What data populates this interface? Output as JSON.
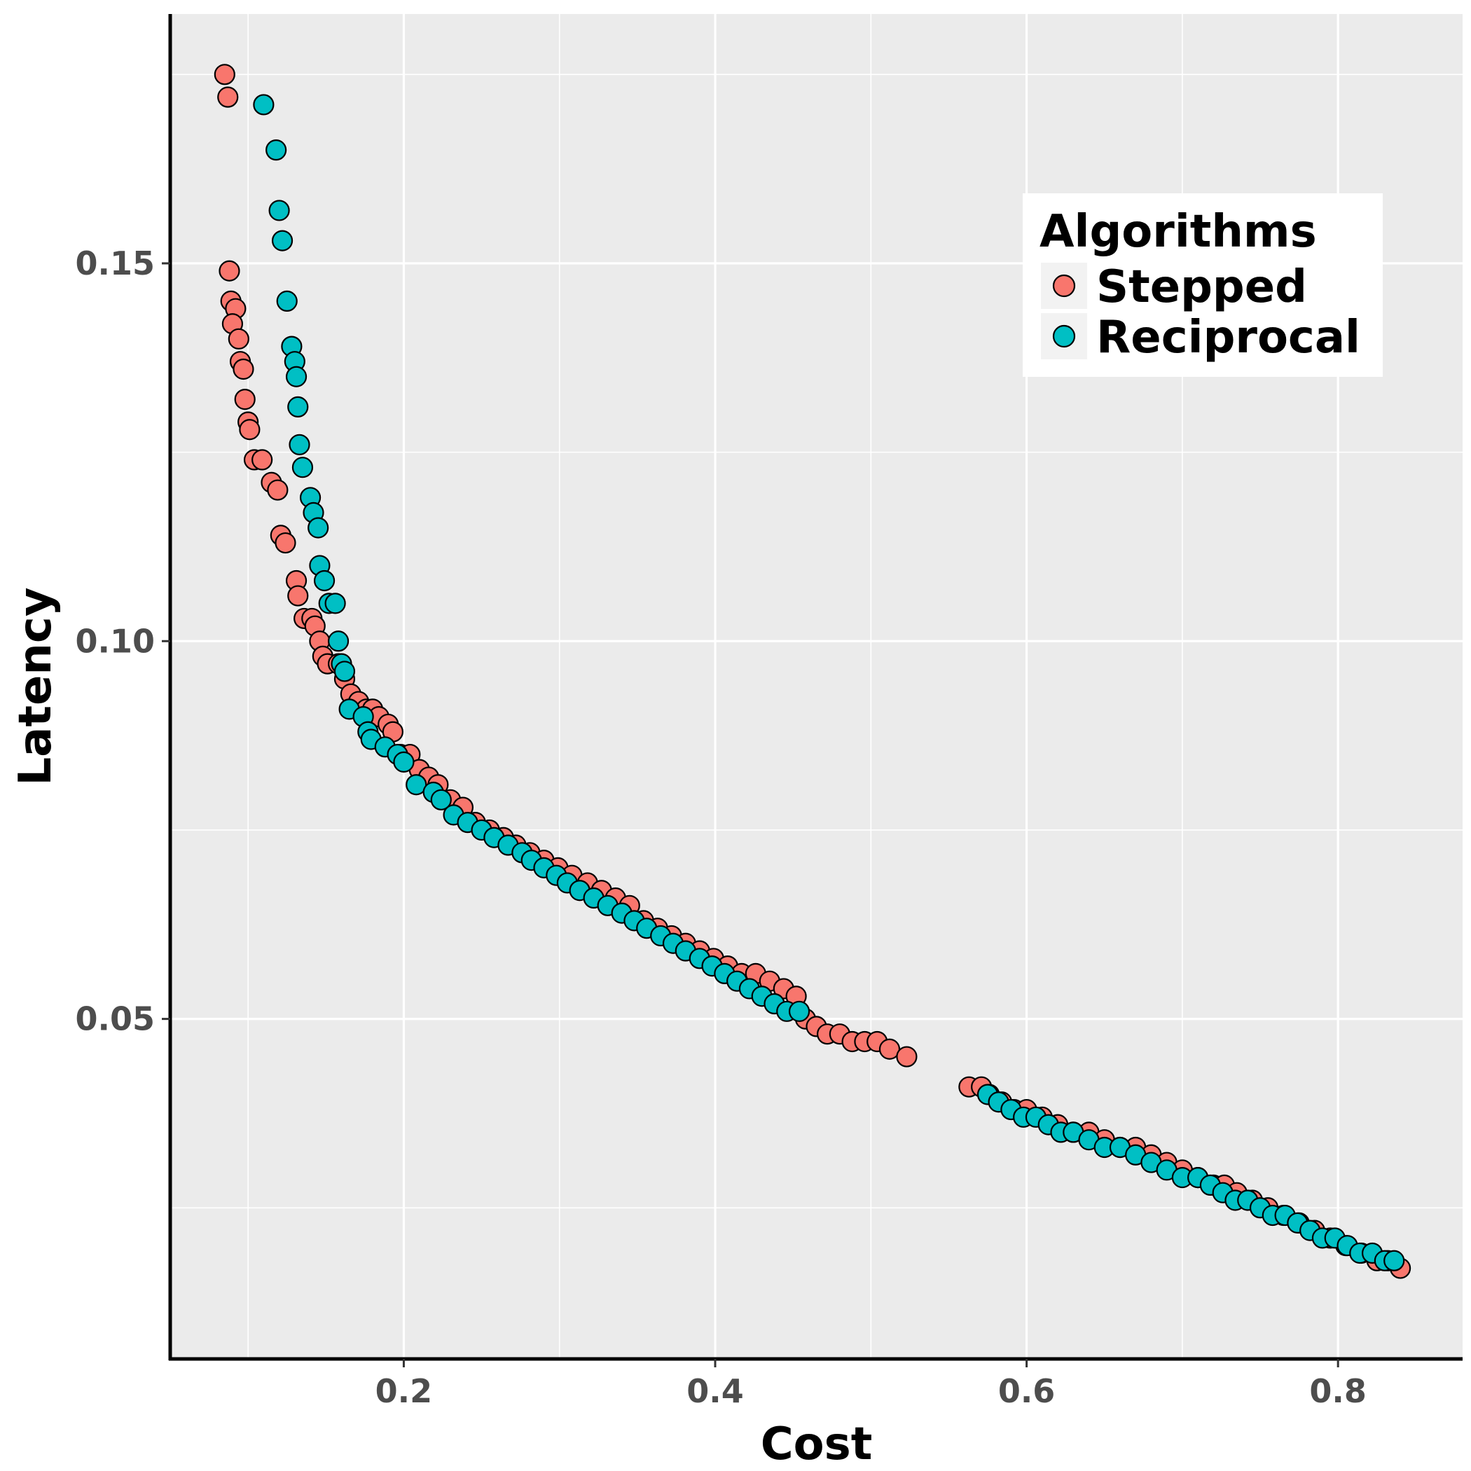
{
  "chart_data": {
    "type": "scatter",
    "title": "",
    "xlabel": "Cost",
    "ylabel": "Latency",
    "xlim": [
      0.05,
      0.88
    ],
    "ylim": [
      0.005,
      0.183
    ],
    "xticks": [
      0.2,
      0.4,
      0.6,
      0.8
    ],
    "xtick_labels": [
      "0.2",
      "0.4",
      "0.6",
      "0.8"
    ],
    "yticks": [
      0.05,
      0.1,
      0.15
    ],
    "ytick_labels": [
      "0.05",
      "0.10",
      "0.15"
    ],
    "grid": true,
    "panel_background": "#ebebeb",
    "legend": {
      "title": "Algorithms",
      "position": "top-right",
      "entries": [
        "Stepped",
        "Reciprocal"
      ]
    },
    "series": [
      {
        "name": "Stepped",
        "color": "#f8766d",
        "points": [
          [
            0.085,
            0.175
          ],
          [
            0.087,
            0.172
          ],
          [
            0.088,
            0.149
          ],
          [
            0.089,
            0.145
          ],
          [
            0.092,
            0.144
          ],
          [
            0.09,
            0.142
          ],
          [
            0.094,
            0.14
          ],
          [
            0.095,
            0.137
          ],
          [
            0.097,
            0.136
          ],
          [
            0.098,
            0.132
          ],
          [
            0.1,
            0.129
          ],
          [
            0.101,
            0.128
          ],
          [
            0.104,
            0.124
          ],
          [
            0.109,
            0.124
          ],
          [
            0.115,
            0.121
          ],
          [
            0.119,
            0.12
          ],
          [
            0.121,
            0.114
          ],
          [
            0.124,
            0.113
          ],
          [
            0.131,
            0.108
          ],
          [
            0.132,
            0.106
          ],
          [
            0.136,
            0.103
          ],
          [
            0.141,
            0.103
          ],
          [
            0.143,
            0.102
          ],
          [
            0.146,
            0.1
          ],
          [
            0.148,
            0.098
          ],
          [
            0.151,
            0.097
          ],
          [
            0.158,
            0.097
          ],
          [
            0.162,
            0.095
          ],
          [
            0.166,
            0.093
          ],
          [
            0.171,
            0.092
          ],
          [
            0.176,
            0.091
          ],
          [
            0.18,
            0.091
          ],
          [
            0.184,
            0.09
          ],
          [
            0.19,
            0.089
          ],
          [
            0.193,
            0.088
          ],
          [
            0.198,
            0.085
          ],
          [
            0.204,
            0.085
          ],
          [
            0.21,
            0.083
          ],
          [
            0.216,
            0.082
          ],
          [
            0.222,
            0.081
          ],
          [
            0.23,
            0.079
          ],
          [
            0.238,
            0.078
          ],
          [
            0.246,
            0.076
          ],
          [
            0.255,
            0.075
          ],
          [
            0.264,
            0.074
          ],
          [
            0.272,
            0.073
          ],
          [
            0.281,
            0.072
          ],
          [
            0.29,
            0.071
          ],
          [
            0.299,
            0.07
          ],
          [
            0.308,
            0.069
          ],
          [
            0.318,
            0.068
          ],
          [
            0.327,
            0.067
          ],
          [
            0.336,
            0.066
          ],
          [
            0.345,
            0.065
          ],
          [
            0.354,
            0.063
          ],
          [
            0.363,
            0.062
          ],
          [
            0.372,
            0.061
          ],
          [
            0.381,
            0.06
          ],
          [
            0.39,
            0.059
          ],
          [
            0.399,
            0.058
          ],
          [
            0.408,
            0.057
          ],
          [
            0.417,
            0.056
          ],
          [
            0.426,
            0.056
          ],
          [
            0.435,
            0.055
          ],
          [
            0.444,
            0.054
          ],
          [
            0.452,
            0.053
          ],
          [
            0.458,
            0.05
          ],
          [
            0.465,
            0.049
          ],
          [
            0.472,
            0.048
          ],
          [
            0.48,
            0.048
          ],
          [
            0.488,
            0.047
          ],
          [
            0.496,
            0.047
          ],
          [
            0.504,
            0.047
          ],
          [
            0.512,
            0.046
          ],
          [
            0.523,
            0.045
          ],
          [
            0.563,
            0.041
          ],
          [
            0.571,
            0.041
          ],
          [
            0.576,
            0.04
          ],
          [
            0.584,
            0.039
          ],
          [
            0.592,
            0.038
          ],
          [
            0.6,
            0.038
          ],
          [
            0.61,
            0.037
          ],
          [
            0.62,
            0.036
          ],
          [
            0.63,
            0.035
          ],
          [
            0.64,
            0.035
          ],
          [
            0.65,
            0.034
          ],
          [
            0.66,
            0.033
          ],
          [
            0.67,
            0.033
          ],
          [
            0.68,
            0.032
          ],
          [
            0.69,
            0.031
          ],
          [
            0.7,
            0.03
          ],
          [
            0.71,
            0.029
          ],
          [
            0.72,
            0.028
          ],
          [
            0.727,
            0.028
          ],
          [
            0.735,
            0.027
          ],
          [
            0.745,
            0.026
          ],
          [
            0.755,
            0.025
          ],
          [
            0.765,
            0.024
          ],
          [
            0.775,
            0.023
          ],
          [
            0.785,
            0.022
          ],
          [
            0.795,
            0.021
          ],
          [
            0.805,
            0.02
          ],
          [
            0.815,
            0.019
          ],
          [
            0.825,
            0.018
          ],
          [
            0.832,
            0.018
          ],
          [
            0.84,
            0.017
          ]
        ]
      },
      {
        "name": "Reciprocal",
        "color": "#00bfc4",
        "points": [
          [
            0.11,
            0.171
          ],
          [
            0.118,
            0.165
          ],
          [
            0.12,
            0.157
          ],
          [
            0.122,
            0.153
          ],
          [
            0.125,
            0.145
          ],
          [
            0.128,
            0.139
          ],
          [
            0.13,
            0.137
          ],
          [
            0.131,
            0.135
          ],
          [
            0.132,
            0.131
          ],
          [
            0.133,
            0.126
          ],
          [
            0.135,
            0.123
          ],
          [
            0.14,
            0.119
          ],
          [
            0.142,
            0.117
          ],
          [
            0.145,
            0.115
          ],
          [
            0.146,
            0.11
          ],
          [
            0.149,
            0.108
          ],
          [
            0.152,
            0.105
          ],
          [
            0.156,
            0.105
          ],
          [
            0.158,
            0.1
          ],
          [
            0.16,
            0.097
          ],
          [
            0.162,
            0.096
          ],
          [
            0.165,
            0.091
          ],
          [
            0.174,
            0.09
          ],
          [
            0.177,
            0.088
          ],
          [
            0.179,
            0.087
          ],
          [
            0.188,
            0.086
          ],
          [
            0.196,
            0.085
          ],
          [
            0.2,
            0.084
          ],
          [
            0.208,
            0.081
          ],
          [
            0.219,
            0.08
          ],
          [
            0.224,
            0.079
          ],
          [
            0.232,
            0.077
          ],
          [
            0.241,
            0.076
          ],
          [
            0.25,
            0.075
          ],
          [
            0.258,
            0.074
          ],
          [
            0.267,
            0.073
          ],
          [
            0.276,
            0.072
          ],
          [
            0.282,
            0.071
          ],
          [
            0.29,
            0.07
          ],
          [
            0.298,
            0.069
          ],
          [
            0.305,
            0.068
          ],
          [
            0.313,
            0.067
          ],
          [
            0.322,
            0.066
          ],
          [
            0.331,
            0.065
          ],
          [
            0.34,
            0.064
          ],
          [
            0.348,
            0.063
          ],
          [
            0.356,
            0.062
          ],
          [
            0.365,
            0.061
          ],
          [
            0.373,
            0.06
          ],
          [
            0.381,
            0.059
          ],
          [
            0.39,
            0.058
          ],
          [
            0.398,
            0.057
          ],
          [
            0.406,
            0.056
          ],
          [
            0.414,
            0.055
          ],
          [
            0.422,
            0.054
          ],
          [
            0.43,
            0.053
          ],
          [
            0.438,
            0.052
          ],
          [
            0.446,
            0.051
          ],
          [
            0.454,
            0.051
          ],
          [
            0.575,
            0.04
          ],
          [
            0.582,
            0.039
          ],
          [
            0.59,
            0.038
          ],
          [
            0.598,
            0.037
          ],
          [
            0.606,
            0.037
          ],
          [
            0.614,
            0.036
          ],
          [
            0.622,
            0.035
          ],
          [
            0.63,
            0.035
          ],
          [
            0.64,
            0.034
          ],
          [
            0.65,
            0.033
          ],
          [
            0.66,
            0.033
          ],
          [
            0.67,
            0.032
          ],
          [
            0.68,
            0.031
          ],
          [
            0.69,
            0.03
          ],
          [
            0.7,
            0.029
          ],
          [
            0.71,
            0.029
          ],
          [
            0.718,
            0.028
          ],
          [
            0.726,
            0.027
          ],
          [
            0.734,
            0.026
          ],
          [
            0.742,
            0.026
          ],
          [
            0.75,
            0.025
          ],
          [
            0.758,
            0.024
          ],
          [
            0.766,
            0.024
          ],
          [
            0.774,
            0.023
          ],
          [
            0.782,
            0.022
          ],
          [
            0.79,
            0.021
          ],
          [
            0.798,
            0.021
          ],
          [
            0.806,
            0.02
          ],
          [
            0.814,
            0.019
          ],
          [
            0.822,
            0.019
          ],
          [
            0.83,
            0.018
          ],
          [
            0.836,
            0.018
          ]
        ]
      }
    ]
  }
}
